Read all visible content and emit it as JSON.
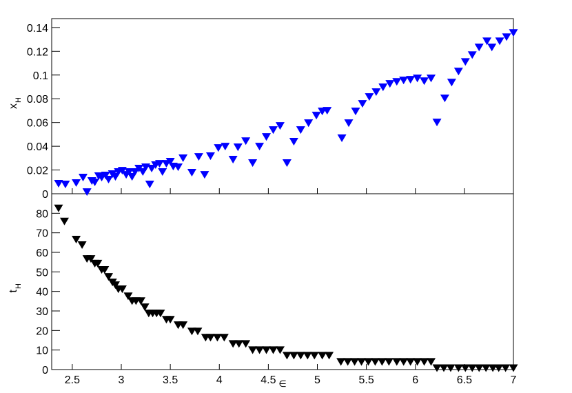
{
  "chart_data": [
    {
      "type": "scatter",
      "marker": "triangle-down",
      "color": "#0000ff",
      "y_label": "x",
      "y_label_subscript": "H",
      "xlim": [
        2.29,
        7.0
      ],
      "xticks": [
        2.5,
        3,
        3.5,
        4,
        4.5,
        5,
        5.5,
        6,
        6.5,
        7
      ],
      "ylim": [
        0,
        0.1475
      ],
      "yticks": [
        0,
        0.02,
        0.04,
        0.06,
        0.08,
        0.1,
        0.12,
        0.14
      ],
      "x": [
        2.36,
        2.43,
        2.54,
        2.61,
        2.65,
        2.7,
        2.73,
        2.77,
        2.8,
        2.84,
        2.87,
        2.91,
        2.94,
        2.97,
        3.01,
        3.05,
        3.08,
        3.11,
        3.14,
        3.18,
        3.22,
        3.25,
        3.29,
        3.31,
        3.35,
        3.39,
        3.42,
        3.46,
        3.5,
        3.53,
        3.58,
        3.63,
        3.72,
        3.79,
        3.85,
        3.91,
        3.99,
        4.06,
        4.14,
        4.19,
        4.27,
        4.34,
        4.41,
        4.48,
        4.55,
        4.62,
        4.69,
        4.76,
        4.83,
        4.91,
        4.99,
        5.05,
        5.1,
        5.25,
        5.32,
        5.39,
        5.46,
        5.53,
        5.6,
        5.67,
        5.74,
        5.81,
        5.88,
        5.95,
        6.02,
        6.09,
        6.16,
        6.22,
        6.3,
        6.37,
        6.44,
        6.51,
        6.58,
        6.65,
        6.73,
        6.78,
        6.86,
        6.93,
        7.0
      ],
      "values": [
        0.0084,
        0.0078,
        0.009,
        0.0136,
        0.0014,
        0.0107,
        0.0096,
        0.0148,
        0.0136,
        0.0154,
        0.0119,
        0.0165,
        0.0142,
        0.0183,
        0.0194,
        0.0159,
        0.0183,
        0.0142,
        0.0183,
        0.0212,
        0.0183,
        0.0223,
        0.0078,
        0.0212,
        0.0241,
        0.0252,
        0.0183,
        0.0252,
        0.027,
        0.0229,
        0.0223,
        0.0299,
        0.0177,
        0.031,
        0.0159,
        0.0316,
        0.0385,
        0.0397,
        0.0287,
        0.0391,
        0.0443,
        0.0258,
        0.0397,
        0.0478,
        0.0536,
        0.0571,
        0.0258,
        0.0438,
        0.0536,
        0.0594,
        0.0658,
        0.0693,
        0.0699,
        0.0467,
        0.0594,
        0.0693,
        0.0757,
        0.0815,
        0.0856,
        0.0896,
        0.0925,
        0.0942,
        0.0954,
        0.096,
        0.0971,
        0.0948,
        0.0971,
        0.06,
        0.0803,
        0.0936,
        0.1029,
        0.111,
        0.1168,
        0.1232,
        0.1284,
        0.1232,
        0.1284,
        0.1319,
        0.1354
      ]
    },
    {
      "type": "scatter",
      "marker": "triangle-down",
      "color": "#000000",
      "x_label": "∈",
      "y_label": "t",
      "y_label_subscript": "H",
      "xlim": [
        2.29,
        7.0
      ],
      "xticks": [
        2.5,
        3,
        3.5,
        4,
        4.5,
        5,
        5.5,
        6,
        6.5,
        7
      ],
      "ylim": [
        0,
        90
      ],
      "yticks": [
        0,
        10,
        20,
        30,
        40,
        50,
        60,
        70,
        80
      ],
      "x": [
        2.36,
        2.42,
        2.54,
        2.6,
        2.65,
        2.69,
        2.73,
        2.76,
        2.8,
        2.83,
        2.87,
        2.91,
        2.94,
        2.97,
        3.01,
        3.07,
        3.11,
        3.15,
        3.2,
        3.24,
        3.28,
        3.32,
        3.36,
        3.4,
        3.46,
        3.5,
        3.58,
        3.63,
        3.72,
        3.78,
        3.86,
        3.91,
        3.98,
        4.05,
        4.14,
        4.2,
        4.27,
        4.34,
        4.41,
        4.48,
        4.55,
        4.62,
        4.69,
        4.76,
        4.83,
        4.9,
        4.97,
        5.05,
        5.12,
        5.24,
        5.31,
        5.38,
        5.45,
        5.52,
        5.59,
        5.66,
        5.73,
        5.81,
        5.88,
        5.95,
        6.02,
        6.09,
        6.16,
        6.22,
        6.29,
        6.36,
        6.44,
        6.51,
        6.58,
        6.65,
        6.72,
        6.79,
        6.85,
        6.92,
        7.0
      ],
      "values": [
        82.5,
        75.8,
        66.5,
        63.7,
        56.6,
        56.6,
        54.2,
        54.2,
        51.0,
        51.0,
        47.4,
        44.6,
        43.2,
        41.1,
        41.1,
        37.5,
        35.0,
        35.0,
        35.0,
        31.9,
        28.7,
        28.7,
        28.7,
        28.7,
        25.5,
        25.5,
        22.7,
        22.7,
        19.5,
        19.5,
        16.3,
        16.3,
        16.3,
        16.3,
        13.1,
        13.1,
        13.1,
        9.9,
        9.9,
        9.9,
        9.9,
        9.9,
        7.1,
        7.1,
        7.1,
        7.1,
        7.1,
        7.1,
        7.1,
        3.9,
        3.9,
        3.9,
        3.9,
        3.9,
        3.9,
        3.9,
        3.9,
        3.9,
        3.9,
        3.9,
        3.9,
        3.9,
        3.9,
        0.7,
        0.7,
        0.7,
        0.7,
        0.7,
        0.7,
        0.7,
        0.7,
        0.7,
        0.7,
        0.7,
        0.7
      ]
    }
  ]
}
